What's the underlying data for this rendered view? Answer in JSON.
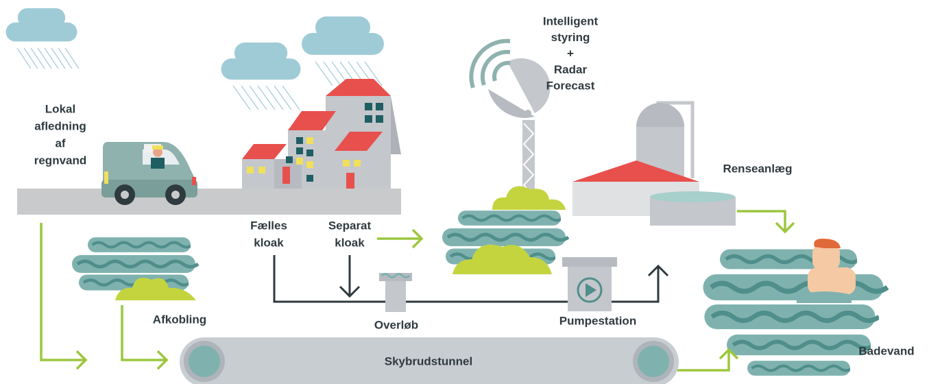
{
  "labels": {
    "lokal": {
      "lines": [
        "Lokal",
        "afledning",
        "af",
        "regnvand"
      ]
    },
    "intelligent": {
      "lines": [
        "Intelligent",
        "styring",
        "+",
        "Radar",
        "Forecast"
      ]
    },
    "renseanlaeg": {
      "lines": [
        "Renseanlæg"
      ]
    },
    "faelles": {
      "lines": [
        "Fælles",
        "kloak"
      ]
    },
    "separat": {
      "lines": [
        "Separat",
        "kloak"
      ]
    },
    "afkobling": {
      "lines": [
        "Afkobling"
      ]
    },
    "overloeb": {
      "lines": [
        "Overløb"
      ]
    },
    "pumpestation": {
      "lines": [
        "Pumpestation"
      ]
    },
    "skybrudstunnel": {
      "lines": [
        "Skybrudstunnel"
      ]
    },
    "badevand": {
      "lines": [
        "Badevand"
      ]
    }
  }
}
